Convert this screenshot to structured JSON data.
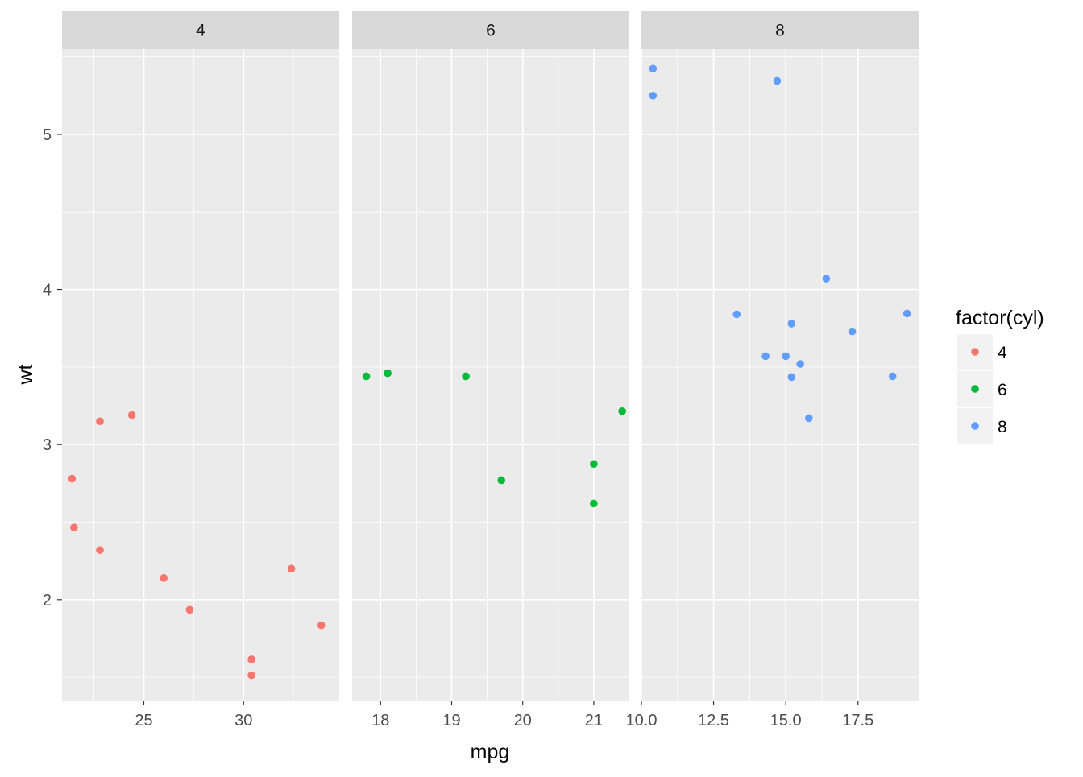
{
  "chart_data": {
    "type": "scatter",
    "xlabel": "mpg",
    "ylabel": "wt",
    "facet_by": "cyl",
    "shared_y": {
      "range": [
        1.35,
        5.55
      ],
      "ticks": [
        2,
        3,
        4,
        5
      ],
      "tick_labels": [
        "2",
        "3",
        "4",
        "5"
      ]
    },
    "grid": true,
    "legend": {
      "title": "factor(cyl)",
      "placement": "right",
      "entries": [
        {
          "label": "4",
          "color": "#F8766D"
        },
        {
          "label": "6",
          "color": "#00BA38"
        },
        {
          "label": "8",
          "color": "#619CFF"
        }
      ]
    },
    "panels": [
      {
        "strip": "4",
        "color": "#F8766D",
        "xlim": [
          20.9,
          34.8
        ],
        "xticks": [
          25,
          30
        ],
        "xtick_labels": [
          "25",
          "30"
        ],
        "points": [
          {
            "x": 22.8,
            "y": 2.32
          },
          {
            "x": 24.4,
            "y": 3.19
          },
          {
            "x": 22.8,
            "y": 3.15
          },
          {
            "x": 32.4,
            "y": 2.2
          },
          {
            "x": 30.4,
            "y": 1.615
          },
          {
            "x": 33.9,
            "y": 1.835
          },
          {
            "x": 21.5,
            "y": 2.465
          },
          {
            "x": 27.3,
            "y": 1.935
          },
          {
            "x": 26.0,
            "y": 2.14
          },
          {
            "x": 30.4,
            "y": 1.513
          },
          {
            "x": 21.4,
            "y": 2.78
          }
        ]
      },
      {
        "strip": "6",
        "color": "#00BA38",
        "xlim": [
          17.6,
          21.5
        ],
        "xticks": [
          18,
          19,
          20,
          21
        ],
        "xtick_labels": [
          "18",
          "19",
          "20",
          "21"
        ],
        "points": [
          {
            "x": 21.0,
            "y": 2.62
          },
          {
            "x": 21.0,
            "y": 2.875
          },
          {
            "x": 21.4,
            "y": 3.215
          },
          {
            "x": 18.1,
            "y": 3.46
          },
          {
            "x": 19.2,
            "y": 3.44
          },
          {
            "x": 17.8,
            "y": 3.44
          },
          {
            "x": 19.7,
            "y": 2.77
          }
        ]
      },
      {
        "strip": "8",
        "color": "#619CFF",
        "xlim": [
          10.0,
          19.6
        ],
        "xticks": [
          10,
          12.5,
          15,
          17.5
        ],
        "xtick_labels": [
          "10.0",
          "12.5",
          "15.0",
          "17.5"
        ],
        "points": [
          {
            "x": 18.7,
            "y": 3.44
          },
          {
            "x": 14.3,
            "y": 3.57
          },
          {
            "x": 16.4,
            "y": 4.07
          },
          {
            "x": 17.3,
            "y": 3.73
          },
          {
            "x": 15.2,
            "y": 3.78
          },
          {
            "x": 10.4,
            "y": 5.25
          },
          {
            "x": 10.4,
            "y": 5.424
          },
          {
            "x": 14.7,
            "y": 5.345
          },
          {
            "x": 15.5,
            "y": 3.52
          },
          {
            "x": 15.2,
            "y": 3.435
          },
          {
            "x": 13.3,
            "y": 3.84
          },
          {
            "x": 19.2,
            "y": 3.845
          },
          {
            "x": 15.8,
            "y": 3.17
          },
          {
            "x": 15.0,
            "y": 3.57
          }
        ]
      }
    ]
  }
}
